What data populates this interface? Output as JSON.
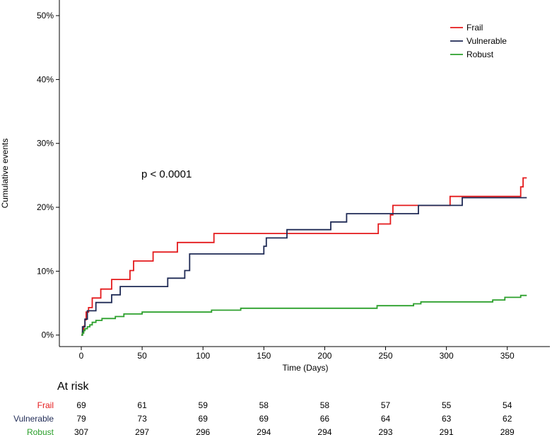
{
  "chart_data": {
    "type": "line",
    "subtype": "step",
    "xlabel": "Time (Days)",
    "ylabel": "Cumulative events",
    "xlim": [
      -18,
      385
    ],
    "ylim": [
      -1.8,
      52
    ],
    "xticks": [
      0,
      50,
      100,
      150,
      200,
      250,
      300,
      350
    ],
    "yticks": [
      0,
      10,
      20,
      30,
      40,
      50
    ],
    "ytick_labels": [
      "0%",
      "10%",
      "20%",
      "30%",
      "40%",
      "50%"
    ],
    "annotation": "p < 0.0001",
    "legend_position": "top-right",
    "series": [
      {
        "name": "Frail",
        "color": "#e41a1c",
        "points": [
          [
            0,
            0
          ],
          [
            1,
            0.5
          ],
          [
            2,
            1.4
          ],
          [
            3,
            2.4
          ],
          [
            4,
            3.6
          ],
          [
            6,
            4.3
          ],
          [
            9,
            5.8
          ],
          [
            16,
            7.2
          ],
          [
            25,
            8.7
          ],
          [
            40,
            10.1
          ],
          [
            43,
            11.6
          ],
          [
            59,
            13.0
          ],
          [
            79,
            14.5
          ],
          [
            109,
            15.9
          ],
          [
            244,
            17.4
          ],
          [
            254,
            18.8
          ],
          [
            256,
            20.3
          ],
          [
            303,
            21.7
          ],
          [
            361,
            23.2
          ],
          [
            363,
            24.6
          ],
          [
            366,
            24.6
          ]
        ]
      },
      {
        "name": "Vulnerable",
        "color": "#1f2a55",
        "points": [
          [
            0,
            0
          ],
          [
            1,
            1.3
          ],
          [
            3,
            2.5
          ],
          [
            5,
            3.8
          ],
          [
            12,
            5.1
          ],
          [
            25,
            6.3
          ],
          [
            32,
            7.6
          ],
          [
            71,
            8.9
          ],
          [
            85,
            10.1
          ],
          [
            89,
            12.7
          ],
          [
            150,
            13.9
          ],
          [
            152,
            15.2
          ],
          [
            169,
            16.5
          ],
          [
            205,
            17.7
          ],
          [
            218,
            19.0
          ],
          [
            277,
            20.3
          ],
          [
            313,
            21.5
          ],
          [
            366,
            21.5
          ]
        ]
      },
      {
        "name": "Robust",
        "color": "#2ca02c",
        "points": [
          [
            0,
            0
          ],
          [
            1,
            0.3
          ],
          [
            2,
            0.7
          ],
          [
            3,
            1.0
          ],
          [
            5,
            1.3
          ],
          [
            7,
            1.6
          ],
          [
            9,
            2.0
          ],
          [
            12,
            2.3
          ],
          [
            17,
            2.6
          ],
          [
            28,
            2.9
          ],
          [
            35,
            3.3
          ],
          [
            50,
            3.6
          ],
          [
            107,
            3.9
          ],
          [
            131,
            4.2
          ],
          [
            243,
            4.6
          ],
          [
            273,
            4.9
          ],
          [
            279,
            5.2
          ],
          [
            338,
            5.5
          ],
          [
            348,
            5.9
          ],
          [
            361,
            6.2
          ],
          [
            366,
            6.2
          ]
        ]
      }
    ],
    "at_risk": {
      "title": "At risk",
      "times": [
        0,
        50,
        100,
        150,
        200,
        250,
        300,
        350
      ],
      "rows": [
        {
          "name": "Frail",
          "color": "#e41a1c",
          "values": [
            69,
            61,
            59,
            58,
            58,
            57,
            55,
            54
          ]
        },
        {
          "name": "Vulnerable",
          "color": "#1f2a55",
          "values": [
            79,
            73,
            69,
            69,
            66,
            64,
            63,
            62
          ]
        },
        {
          "name": "Robust",
          "color": "#2ca02c",
          "values": [
            307,
            297,
            296,
            294,
            294,
            293,
            291,
            289
          ]
        }
      ]
    }
  }
}
